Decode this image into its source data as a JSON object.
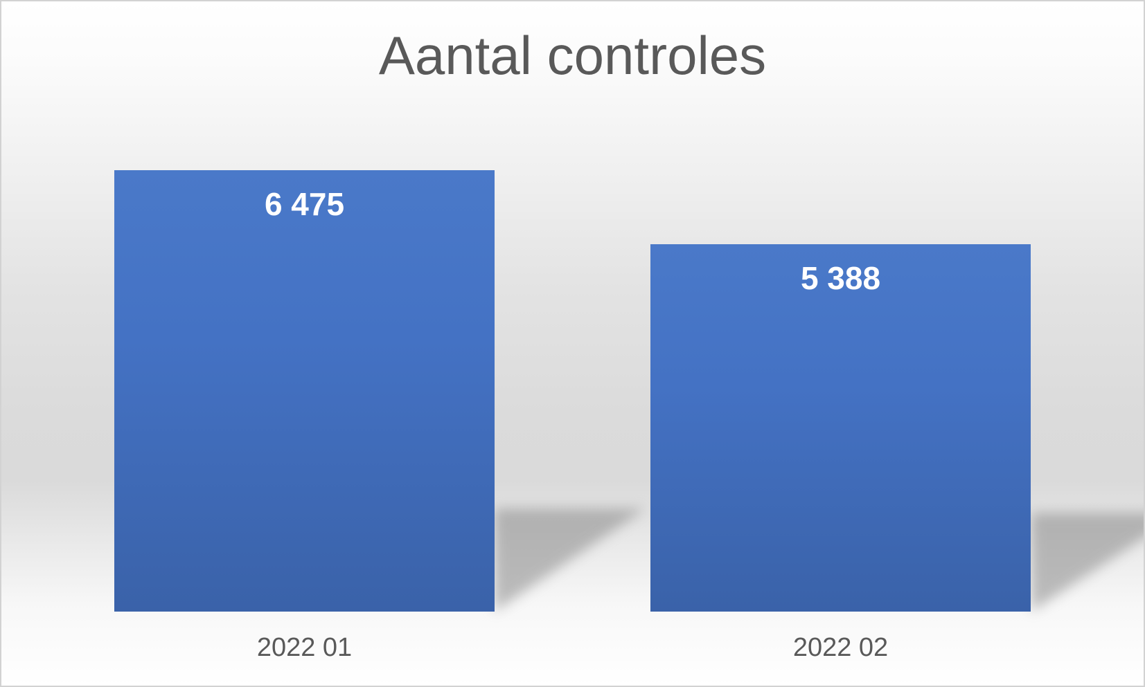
{
  "chart_data": {
    "type": "bar",
    "title": "Aantal controles",
    "categories": [
      "2022 01",
      "2022 02"
    ],
    "values": [
      6475,
      5388
    ],
    "data_labels": [
      "6 475",
      "5 388"
    ],
    "xlabel": "",
    "ylabel": "",
    "series_count": 1,
    "y_axis_visible": false,
    "x_axis_line_visible": false,
    "gridlines": false,
    "legend": "none",
    "data_label_position": "inside-end",
    "bar_effect": "perspective-shadow-bottom-right",
    "colors": {
      "bar_fill_top": "#4A79C9",
      "bar_fill": "#4472C4",
      "bar_fill_bottom": "#3A62A9",
      "data_label_text": "#FFFFFF",
      "title_text": "#595959",
      "category_label_text": "#595959",
      "background_top": "#FFFFFF",
      "background_middle": "#DADADA",
      "background_bottom": "#FFFFFF",
      "frame_border": "#D2D2D2",
      "shadow": "#808080"
    }
  }
}
